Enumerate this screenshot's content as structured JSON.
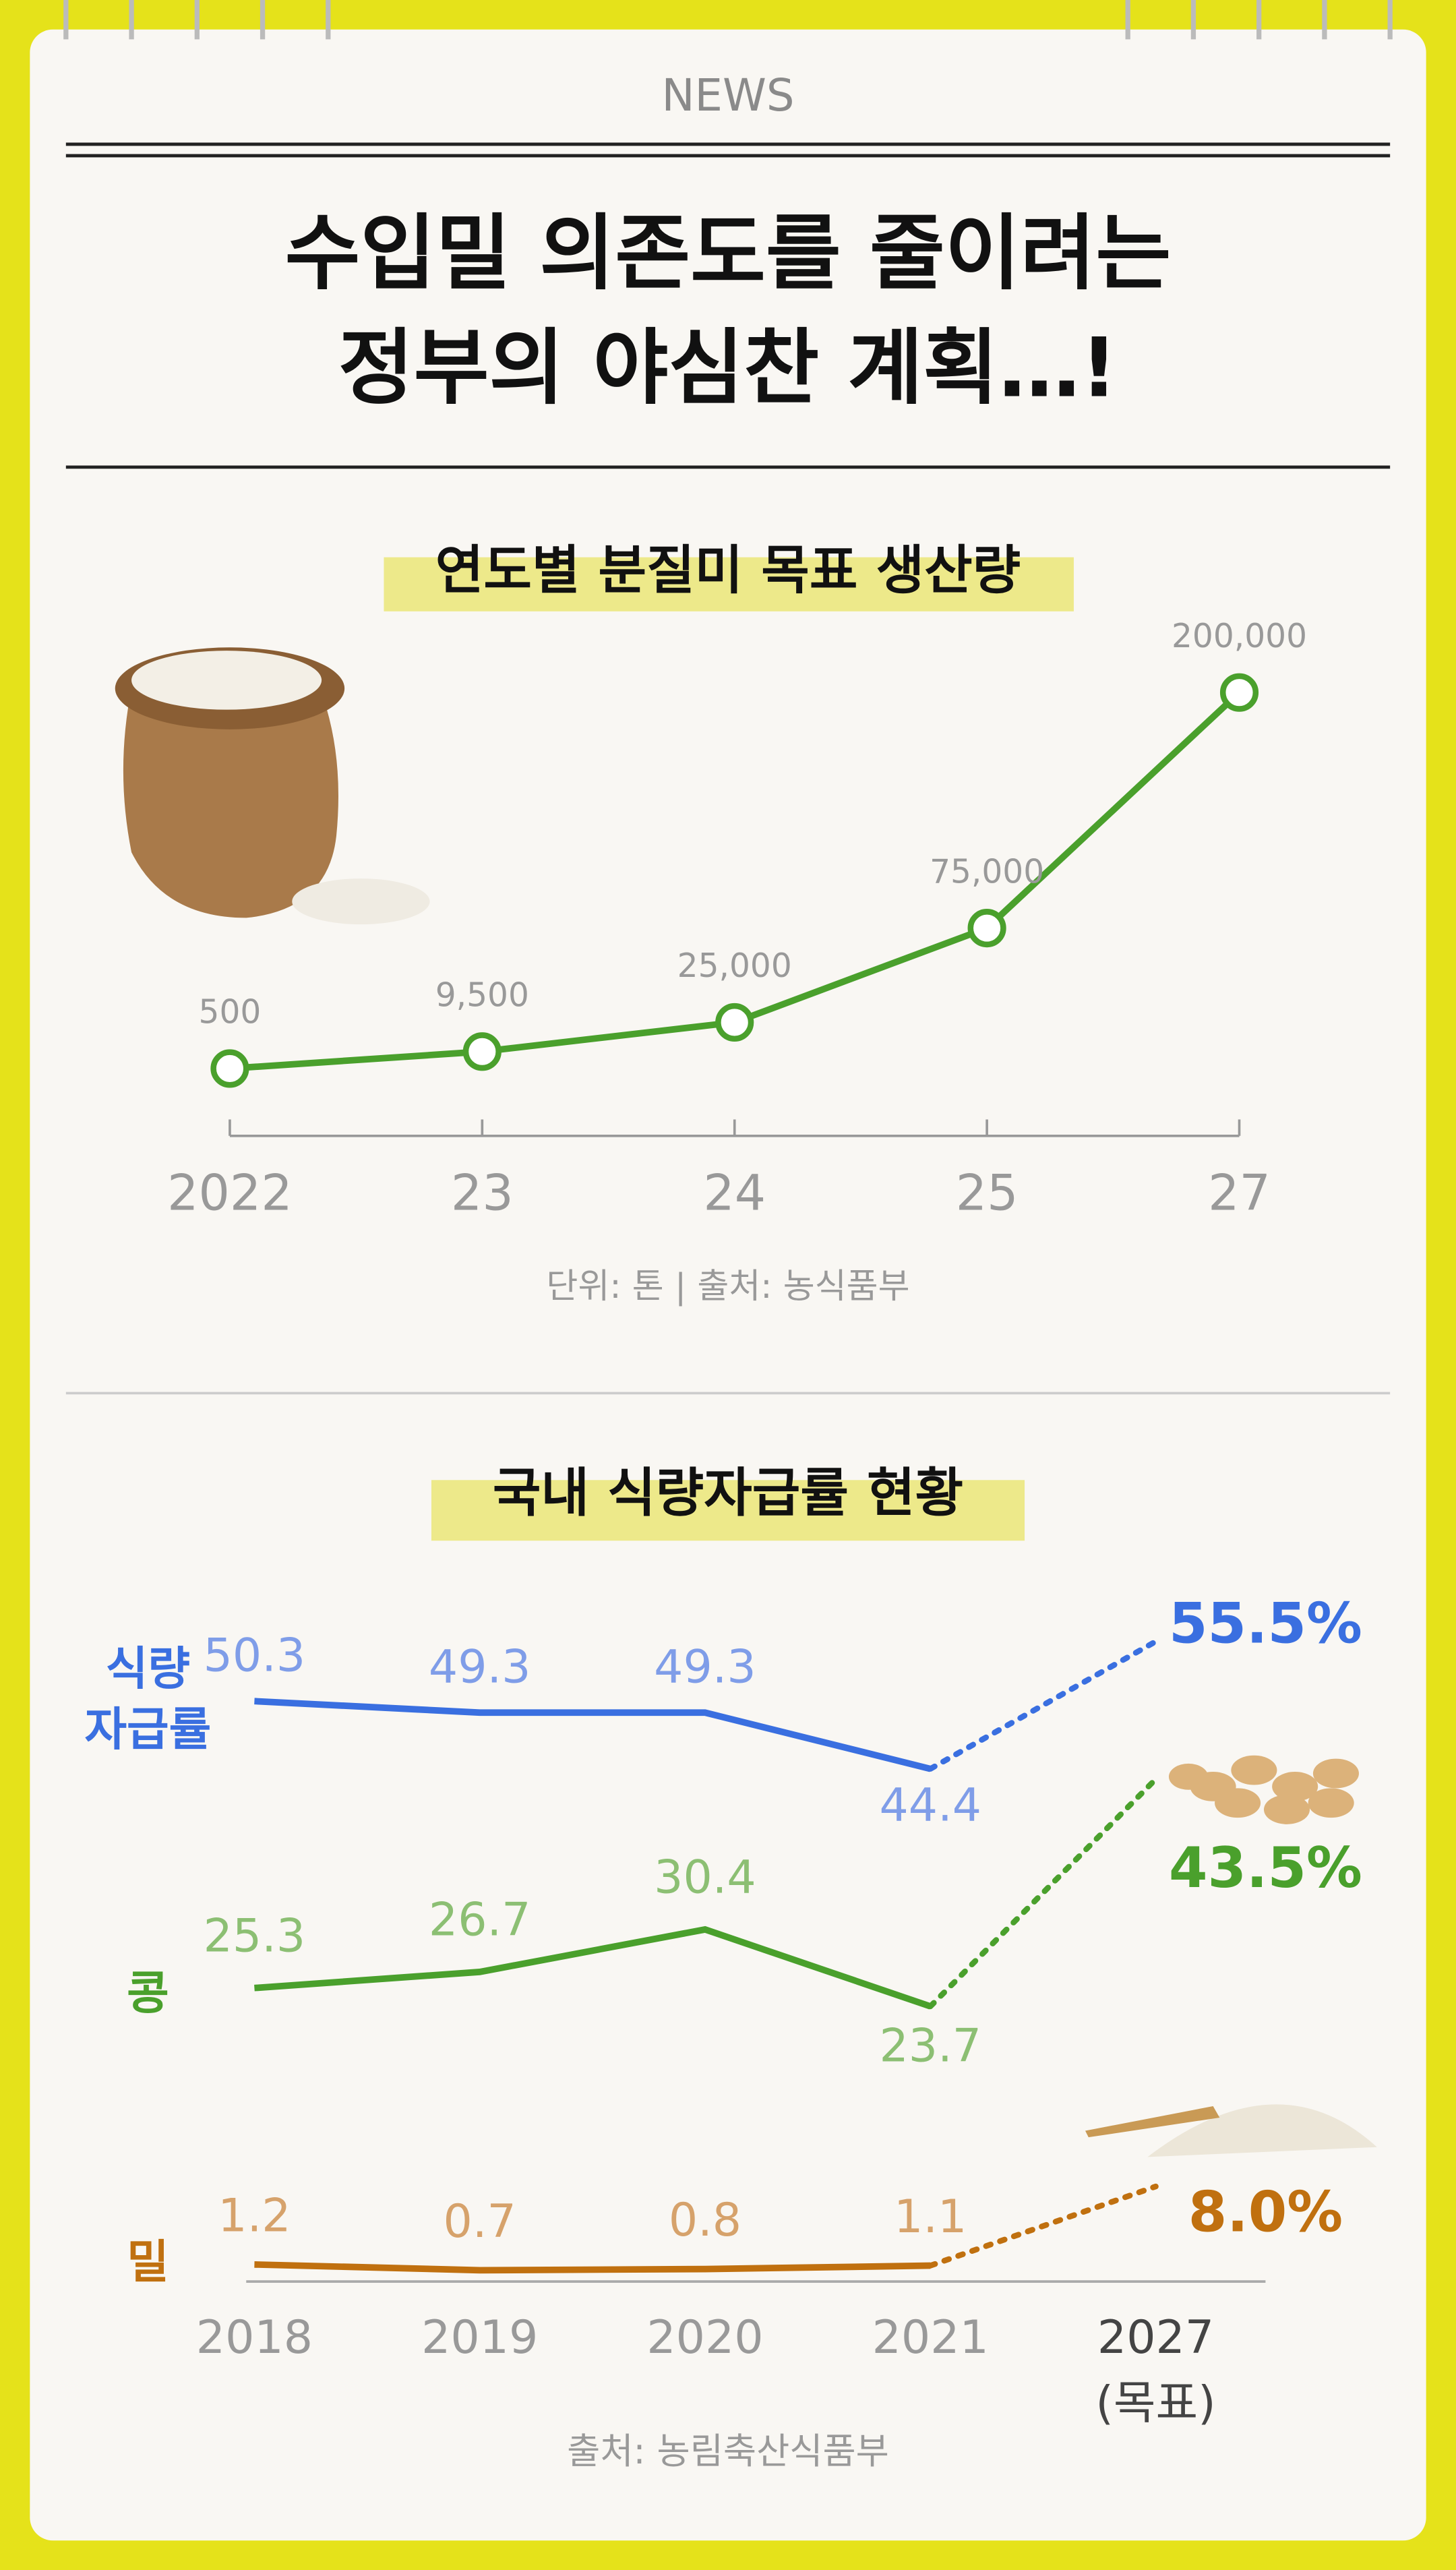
{
  "header": "NEWS",
  "title_lines": [
    "수입밀 의존도를 줄이려는",
    "정부의 야심찬 계획…!"
  ],
  "chart_data": [
    {
      "type": "line",
      "title": "연도별 분질미 목표 생산량",
      "categories": [
        "2022",
        "23",
        "24",
        "25",
        "27"
      ],
      "values": [
        500,
        9500,
        25000,
        75000,
        200000
      ],
      "value_labels": [
        "500",
        "9,500",
        "25,000",
        "75,000",
        "200,000"
      ],
      "color": "#4aa02c",
      "markers": true,
      "note": "단위: 톤  |  출처: 농식품부"
    },
    {
      "type": "line",
      "title": "국내 식량자급률 현황",
      "categories": [
        "2018",
        "2019",
        "2020",
        "2021",
        "2027"
      ],
      "target_note": "(목표)",
      "series": [
        {
          "name": "식량 자급률",
          "color": "#3a6fe0",
          "label_color": "#7f9de8",
          "values": [
            50.3,
            49.3,
            49.3,
            44.4,
            55.5
          ],
          "value_labels": [
            "50.3",
            "49.3",
            "49.3",
            "44.4",
            "55.5%"
          ]
        },
        {
          "name": "콩",
          "color": "#4aa02c",
          "label_color": "#8cbf73",
          "values": [
            25.3,
            26.7,
            30.4,
            23.7,
            43.5
          ],
          "value_labels": [
            "25.3",
            "26.7",
            "30.4",
            "23.7",
            "43.5%"
          ]
        },
        {
          "name": "밀",
          "color": "#c0700f",
          "label_color": "#d6a26b",
          "values": [
            1.2,
            0.7,
            0.8,
            1.1,
            8.0
          ],
          "value_labels": [
            "1.2",
            "0.7",
            "0.8",
            "1.1",
            "8.0%"
          ]
        }
      ],
      "note": "출처: 농림축산식품부"
    }
  ]
}
